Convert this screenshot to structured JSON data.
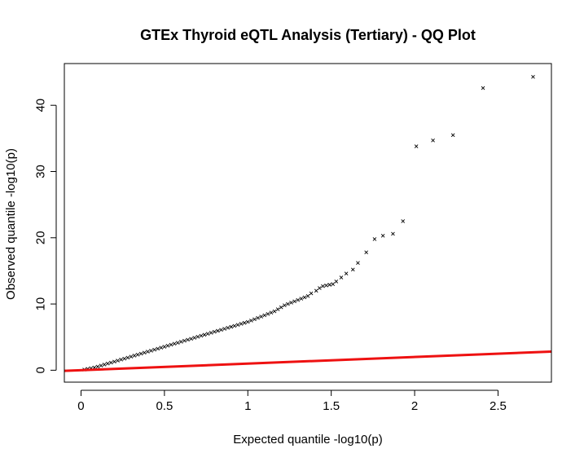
{
  "chart_data": {
    "type": "scatter",
    "title": "GTEx Thyroid eQTL Analysis (Tertiary) - QQ Plot",
    "xlabel": "Expected quantile -log10(p)",
    "ylabel": "Observed quantile -log10(p)",
    "xlim": [
      -0.1,
      2.82
    ],
    "ylim": [
      -1.8,
      46.3
    ],
    "xticks": [
      0,
      0.5,
      1,
      1.5,
      2,
      2.5
    ],
    "xtick_labels": [
      "0",
      "0.5",
      "1",
      "1.5",
      "2",
      "2.5"
    ],
    "yticks": [
      0,
      10,
      20,
      30,
      40
    ],
    "ytick_labels": [
      "0",
      "10",
      "20",
      "30",
      "40"
    ],
    "grid": false,
    "marker": "x",
    "series": [
      {
        "x": [
          0.02,
          0.04,
          0.06,
          0.08,
          0.1,
          0.12,
          0.14,
          0.16,
          0.18,
          0.2,
          0.22,
          0.24,
          0.26,
          0.28,
          0.3,
          0.32,
          0.34,
          0.36,
          0.38,
          0.4,
          0.42,
          0.44,
          0.46,
          0.48,
          0.5,
          0.52,
          0.54,
          0.56,
          0.58,
          0.6,
          0.62,
          0.64,
          0.66,
          0.68,
          0.7,
          0.72,
          0.74,
          0.76,
          0.78,
          0.8,
          0.82,
          0.84,
          0.86,
          0.88,
          0.9,
          0.92,
          0.94,
          0.96,
          0.98,
          1.0,
          1.02,
          1.04,
          1.06,
          1.08,
          1.1,
          1.12,
          1.14,
          1.16,
          1.18,
          1.2,
          1.22,
          1.24,
          1.26,
          1.28,
          1.3,
          1.32,
          1.34,
          1.36,
          1.38,
          1.41,
          1.43,
          1.45,
          1.47,
          1.49,
          1.51,
          1.53,
          1.56,
          1.59,
          1.63,
          1.66,
          1.71,
          1.76,
          1.81,
          1.87,
          1.93,
          2.01,
          2.11,
          2.23,
          2.41,
          2.71
        ],
        "y": [
          0.1,
          0.2,
          0.3,
          0.4,
          0.55,
          0.7,
          0.85,
          1.0,
          1.15,
          1.3,
          1.45,
          1.6,
          1.75,
          1.9,
          2.05,
          2.2,
          2.35,
          2.5,
          2.65,
          2.8,
          2.95,
          3.1,
          3.25,
          3.4,
          3.55,
          3.7,
          3.85,
          4.0,
          4.15,
          4.3,
          4.45,
          4.6,
          4.75,
          4.9,
          5.05,
          5.2,
          5.35,
          5.5,
          5.65,
          5.8,
          5.95,
          6.1,
          6.25,
          6.4,
          6.55,
          6.7,
          6.85,
          7.0,
          7.15,
          7.3,
          7.5,
          7.7,
          7.9,
          8.1,
          8.3,
          8.5,
          8.7,
          8.9,
          9.2,
          9.5,
          9.8,
          10.0,
          10.2,
          10.4,
          10.6,
          10.8,
          11.0,
          11.2,
          11.6,
          12.0,
          12.4,
          12.7,
          12.8,
          12.9,
          13.0,
          13.4,
          14.0,
          14.6,
          15.2,
          16.2,
          17.8,
          19.8,
          20.3,
          20.6,
          22.5,
          33.8,
          34.7,
          35.5,
          42.6,
          44.3
        ]
      }
    ],
    "reference_line": {
      "color": "#ee1111",
      "intercept": 0,
      "slope": 1
    },
    "point_color": "#000000"
  }
}
